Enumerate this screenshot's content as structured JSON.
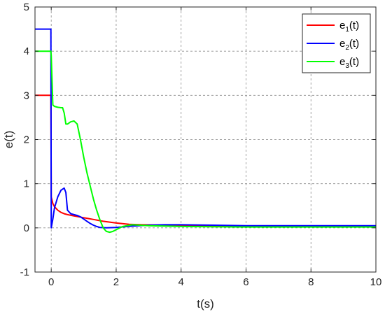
{
  "chart_data": {
    "type": "line",
    "title": "",
    "xlabel": "t(s)",
    "ylabel": "e(t)",
    "xlim": [
      -0.5,
      10
    ],
    "ylim": [
      -1,
      5
    ],
    "xticks": [
      0,
      2,
      4,
      6,
      8,
      10
    ],
    "yticks": [
      -1,
      0,
      1,
      2,
      3,
      4,
      5
    ],
    "grid": true,
    "legend_position": "top-right",
    "series": [
      {
        "name": "e1(t)",
        "legend_base": "e",
        "legend_sub": "1",
        "legend_suffix": "(t)",
        "color": "#ff0000",
        "x": [
          -0.5,
          -0.01,
          0.0,
          0.05,
          0.1,
          0.2,
          0.3,
          0.4,
          0.5,
          0.7,
          1.0,
          1.3,
          1.6,
          2.0,
          2.4,
          2.8,
          3.5,
          4.5,
          6.0,
          8.0,
          10.0
        ],
        "y": [
          3.0,
          3.0,
          0.7,
          0.55,
          0.48,
          0.4,
          0.35,
          0.32,
          0.3,
          0.27,
          0.23,
          0.19,
          0.15,
          0.11,
          0.08,
          0.07,
          0.06,
          0.05,
          0.04,
          0.04,
          0.04
        ]
      },
      {
        "name": "e2(t)",
        "legend_base": "e",
        "legend_sub": "2",
        "legend_suffix": "(t)",
        "color": "#0000ff",
        "x": [
          -0.5,
          -0.01,
          0.0,
          0.05,
          0.1,
          0.2,
          0.3,
          0.4,
          0.45,
          0.5,
          0.6,
          0.7,
          0.8,
          0.9,
          1.0,
          1.1,
          1.2,
          1.3,
          1.4,
          1.5,
          1.7,
          2.0,
          2.5,
          3.0,
          3.5,
          4.0,
          5.0,
          6.0,
          7.0,
          8.0,
          9.0,
          10.0
        ],
        "y": [
          4.5,
          4.5,
          0.0,
          0.2,
          0.45,
          0.7,
          0.85,
          0.9,
          0.8,
          0.4,
          0.32,
          0.3,
          0.28,
          0.25,
          0.2,
          0.15,
          0.1,
          0.06,
          0.03,
          0.01,
          0.0,
          0.01,
          0.04,
          0.06,
          0.07,
          0.07,
          0.06,
          0.05,
          0.05,
          0.05,
          0.05,
          0.05
        ]
      },
      {
        "name": "e3(t)",
        "legend_base": "e",
        "legend_sub": "3",
        "legend_suffix": "(t)",
        "color": "#00ff00",
        "x": [
          -0.5,
          -0.01,
          0.0,
          0.05,
          0.1,
          0.2,
          0.3,
          0.35,
          0.4,
          0.45,
          0.5,
          0.6,
          0.7,
          0.8,
          0.9,
          1.0,
          1.1,
          1.2,
          1.3,
          1.4,
          1.5,
          1.6,
          1.7,
          1.8,
          1.9,
          2.0,
          2.2,
          2.5,
          3.0,
          4.0,
          6.0,
          8.0,
          10.0
        ],
        "y": [
          4.0,
          4.0,
          3.9,
          2.78,
          2.75,
          2.73,
          2.72,
          2.72,
          2.6,
          2.35,
          2.35,
          2.4,
          2.42,
          2.35,
          2.0,
          1.6,
          1.25,
          0.95,
          0.65,
          0.4,
          0.18,
          0.0,
          -0.08,
          -0.1,
          -0.08,
          -0.04,
          0.03,
          0.07,
          0.05,
          0.03,
          0.02,
          0.02,
          0.02
        ]
      }
    ]
  }
}
